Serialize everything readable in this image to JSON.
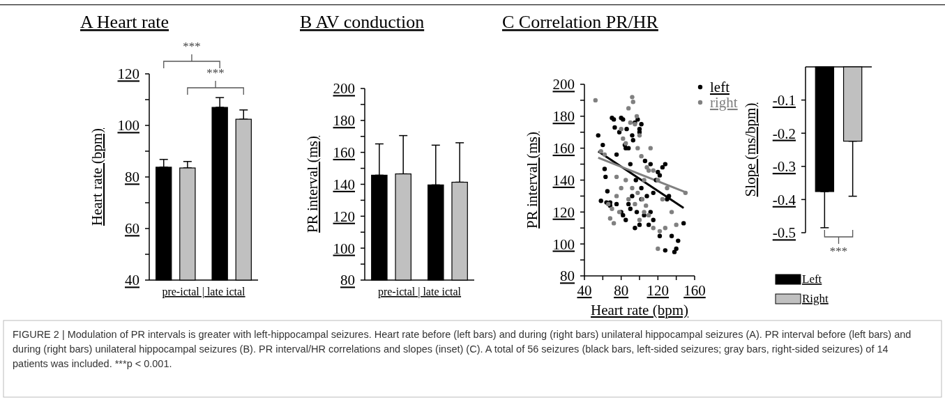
{
  "chart_data": [
    {
      "type": "bar",
      "title": "A Heart rate",
      "ylabel": "Heart rate (bpm)",
      "xlabel": "pre-ictal | late ictal",
      "categories": [
        null,
        null
      ],
      "series": [
        {
          "color": "#000000",
          "values": [
            83.8,
            107
          ],
          "errors": [
            [
              83.8,
              86.8
            ],
            [
              107,
              110.8
            ]
          ]
        },
        {
          "color": "#c0c0c0",
          "values": [
            83.5,
            102.4
          ],
          "errors": [
            [
              83.5,
              86
            ],
            [
              102.4,
              106
            ]
          ]
        }
      ],
      "ylim": [
        40,
        120
      ],
      "yticks": [
        40,
        {
          "value": 50,
          "label": null
        },
        60,
        {
          "value": 70,
          "label": null
        },
        80,
        {
          "value": 90,
          "label": null
        },
        100,
        {
          "value": 110,
          "label": null
        },
        120
      ],
      "annotations": [
        "***",
        "***",
        "FIGURE 2 | Modulation of PR intervals is greater with left-hippocampal seizures. Heart rate before (left bars) and during (right bars) unilateral hippocampal seizures (A). PR interval before (left bars) and during (right bars) unilateral hippocampal seizures (B). PR interval/HR correlations and slopes (inset) (C). A total of 56 seizures (black bars, left-sided seizures; gray bars, right-sided seizures) of 14 patients was included. ***p < 0.001."
      ]
    },
    {
      "type": "bar",
      "title": "B AV conduction",
      "ylabel": "PR interval (ms)",
      "xlabel": "pre-ictal | late ictal",
      "categories": [
        null,
        null
      ],
      "series": [
        {
          "color": "#000000",
          "values": [
            145.7,
            139.6
          ],
          "errors": [
            [
              145.7,
              165.3
            ],
            [
              139.6,
              164.5
            ]
          ]
        },
        {
          "color": "#c0c0c0",
          "values": [
            146.5,
            141.3
          ],
          "errors": [
            [
              146.5,
              170.5
            ],
            [
              141.3,
              166
            ]
          ]
        }
      ],
      "ylim": [
        80,
        200
      ],
      "yticks": [
        80,
        {
          "value": 90,
          "label": null
        },
        100,
        {
          "value": 110,
          "label": null
        },
        120,
        {
          "value": 130,
          "label": null
        },
        140,
        {
          "value": 150,
          "label": null
        },
        160,
        {
          "value": 170,
          "label": null
        },
        180,
        {
          "value": 190,
          "label": null
        },
        200
      ]
    },
    {
      "type": "scatter",
      "title": "C Correlation PR/HR",
      "xlabel": "Heart rate (bpm)",
      "ylabel": "PR interval (ms)",
      "marker": "circle",
      "legend": "top right",
      "xlim": [
        40,
        160
      ],
      "xticks": [
        40,
        {
          "value": 60,
          "label": null
        },
        80,
        {
          "value": 100,
          "label": null
        },
        120,
        {
          "value": 140,
          "label": null
        },
        160
      ],
      "ylim": [
        80,
        200
      ],
      "yticks": [
        80,
        {
          "value": 90,
          "label": null
        },
        100,
        {
          "value": 110,
          "label": null
        },
        120,
        {
          "value": 130,
          "label": null
        },
        140,
        {
          "value": 150,
          "label": null
        },
        160,
        {
          "value": 170,
          "label": null
        },
        180,
        {
          "value": 190,
          "label": null
        },
        200
      ],
      "series": [
        {
          "name": "left",
          "color": "#000000",
          "x": [
            55,
            58,
            60,
            62,
            63,
            65,
            64,
            68,
            68,
            70,
            72,
            73,
            75,
            78,
            80,
            82,
            84,
            85,
            86,
            88,
            90,
            92,
            93,
            95,
            98,
            100,
            100,
            102,
            75,
            80,
            82,
            85,
            88,
            90,
            92,
            95,
            97,
            100,
            102,
            105,
            108,
            110,
            112,
            115,
            118,
            120,
            122,
            125,
            128,
            130,
            132,
            135,
            138,
            140,
            142,
            148,
            112,
            106,
            96,
            102,
            115,
            122,
            128
          ],
          "values": [
            168,
            127,
            162,
            147,
            142,
            133,
            126,
            126,
            124,
            179,
            178,
            173,
            156,
            170,
            179,
            178,
            162,
            160,
            172,
            160,
            150,
            168,
            165,
            176,
            178,
            170,
            172,
            175,
            125,
            120,
            118,
            115,
            125,
            122,
            130,
            110,
            120,
            112,
            128,
            118,
            130,
            112,
            120,
            115,
            140,
            145,
            143,
            148,
            150,
            128,
            130,
            105,
            95,
            97,
            102,
            113,
            150,
            152,
            140,
            135,
            132,
            105,
            96
          ]
        },
        {
          "name": "right",
          "color": "#808080",
          "x": [
            52,
            58,
            62,
            66,
            70,
            72,
            75,
            78,
            80,
            82,
            85,
            88,
            90,
            92,
            93,
            95,
            97,
            100,
            98,
            102,
            105,
            108,
            110,
            112,
            115,
            120,
            125,
            130,
            135,
            140,
            150,
            85,
            88,
            92,
            95,
            100,
            105,
            110,
            115,
            120,
            122,
            128,
            80,
            75,
            68,
            98,
            103,
            107
          ],
          "values": [
            190,
            158,
            156,
            125,
            122,
            113,
            130,
            120,
            172,
            166,
            163,
            185,
            176,
            192,
            189,
            175,
            180,
            168,
            160,
            155,
            140,
            148,
            146,
            160,
            146,
            140,
            128,
            135,
            120,
            112,
            132,
            140,
            128,
            135,
            125,
            115,
            120,
            118,
            110,
            97,
            108,
            110,
            135,
            142,
            116,
            132,
            128,
            124
          ]
        },
        {
          "type": "line",
          "marker": "none",
          "color": "#000000",
          "x": [
            55,
            148
          ],
          "values": [
            158,
            122.5
          ]
        },
        {
          "type": "line",
          "marker": "none",
          "color": "#808080",
          "x": [
            55,
            152
          ],
          "values": [
            154,
            132
          ]
        }
      ]
    },
    {
      "type": "bar",
      "ylabel": "Slope (ms/bpm)",
      "categories": [
        null
      ],
      "legend": "bottom",
      "series": [
        {
          "name": "Left",
          "color": "#000000",
          "values": [
            -0.376
          ],
          "errors": [
            [
              -0.485,
              -0.376
            ]
          ]
        },
        {
          "name": "Right",
          "color": "#c0c0c0",
          "values": [
            -0.224
          ],
          "errors": [
            [
              -0.39,
              -0.224
            ]
          ]
        }
      ],
      "ylim": [
        -0.5,
        0
      ],
      "yticks": [
        -0.1,
        -0.2,
        -0.3,
        -0.4,
        -0.5
      ],
      "annotations": [
        "***"
      ]
    }
  ]
}
